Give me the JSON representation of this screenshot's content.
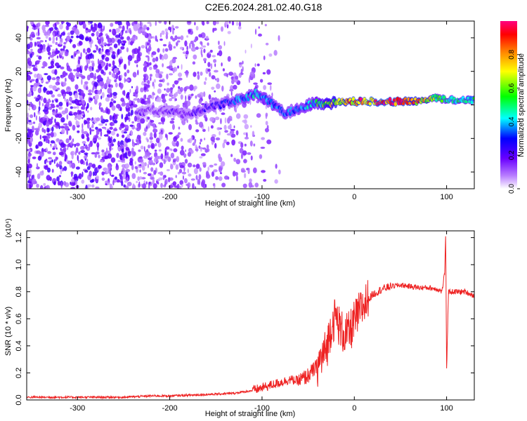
{
  "page_title": "C2E6.2024.281.02.40.G18",
  "chart_data": [
    {
      "type": "heatmap",
      "title": "C2E6.2024.281.02.40.G18",
      "xlabel": "Height of straight line (km)",
      "ylabel": "Frequency (Hz)",
      "xlim": [
        -355,
        130
      ],
      "ylim": [
        -50,
        50
      ],
      "x_ticks": [
        -300,
        -200,
        -100,
        0,
        100
      ],
      "x_tick_labels": [
        "-300",
        "-200",
        "-100",
        "0",
        "100"
      ],
      "y_ticks": [
        -40,
        -20,
        0,
        20,
        40
      ],
      "y_tick_labels": [
        "-40",
        "-20",
        "0",
        "20",
        "40"
      ],
      "colorbar": {
        "label": "Normalized spectral amplitude",
        "range": [
          0,
          1
        ],
        "ticks": [
          0.0,
          0.2,
          0.4,
          0.6,
          0.8
        ],
        "tick_labels": [
          "0.0",
          "0.2",
          "0.4",
          "0.6",
          "0.8"
        ],
        "colormap": [
          "#ffffff",
          "#7a00ff",
          "#0000ff",
          "#00ffff",
          "#00ff00",
          "#ffff00",
          "#ff8000",
          "#ff0000",
          "#ff0080"
        ]
      },
      "ridge": {
        "x": [
          -235,
          -220,
          -200,
          -180,
          -160,
          -140,
          -120,
          -105,
          -95,
          -85,
          -75,
          -65,
          -55,
          -45,
          -35,
          -25,
          -15,
          0,
          20,
          40,
          60,
          80,
          90,
          100,
          110,
          120,
          130
        ],
        "freq": [
          -5,
          -3,
          -4,
          -6,
          -2,
          1,
          4,
          7,
          3,
          -1,
          -5,
          -3,
          -1,
          1,
          1,
          1,
          2,
          2,
          2,
          2,
          2,
          3,
          4,
          3,
          3,
          3,
          3
        ],
        "amplitude": [
          0.2,
          0.15,
          0.2,
          0.2,
          0.25,
          0.3,
          0.4,
          0.45,
          0.4,
          0.4,
          0.35,
          0.4,
          0.4,
          0.5,
          0.6,
          0.7,
          0.8,
          0.9,
          0.95,
          0.95,
          0.9,
          0.75,
          0.6,
          0.5,
          0.5,
          0.5,
          0.5
        ]
      },
      "noise_extent_x": [
        -355,
        -120
      ]
    },
    {
      "type": "line",
      "xlabel": "Height of straight line (km)",
      "ylabel": "SNR (10 * v/v)",
      "y_multiplier": "(x10⁴)",
      "xlim": [
        -355,
        130
      ],
      "ylim": [
        0,
        1.25
      ],
      "x_ticks": [
        -300,
        -200,
        -100,
        0,
        100
      ],
      "x_tick_labels": [
        "-300",
        "-200",
        "-100",
        "0",
        "100"
      ],
      "y_ticks": [
        0.0,
        0.2,
        0.4,
        0.6,
        0.8,
        1.0,
        1.2
      ],
      "y_tick_labels": [
        "0.0",
        "0.2",
        "0.4",
        "0.6",
        "0.8",
        "1.0",
        "1.2"
      ],
      "series": [
        {
          "color": "#ee2222",
          "x": [
            -355,
            -300,
            -250,
            -220,
            -200,
            -160,
            -130,
            -110,
            -95,
            -80,
            -70,
            -60,
            -50,
            -40,
            -30,
            -25,
            -20,
            -15,
            -10,
            -5,
            0,
            10,
            20,
            30,
            40,
            50,
            60,
            70,
            80,
            90,
            95,
            98,
            99,
            100,
            102,
            110,
            120,
            130
          ],
          "y": [
            0.02,
            0.02,
            0.02,
            0.03,
            0.03,
            0.04,
            0.05,
            0.07,
            0.1,
            0.13,
            0.15,
            0.14,
            0.18,
            0.25,
            0.38,
            0.55,
            0.62,
            0.52,
            0.48,
            0.5,
            0.58,
            0.7,
            0.78,
            0.82,
            0.84,
            0.85,
            0.84,
            0.83,
            0.83,
            0.82,
            0.8,
            0.95,
            1.23,
            0.22,
            0.8,
            0.8,
            0.8,
            0.77
          ]
        }
      ]
    }
  ]
}
